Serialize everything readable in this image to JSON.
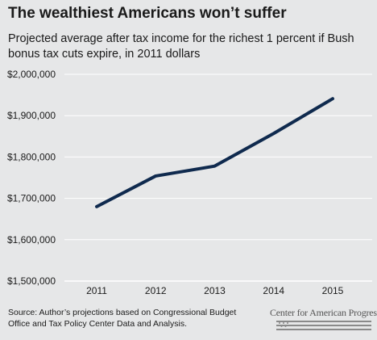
{
  "chart_data": {
    "type": "line",
    "title": "The wealthiest Americans won’t suffer",
    "subtitle": "Projected average after tax income for the richest 1 percent if Bush bonus tax cuts expire, in 2011 dollars",
    "x": [
      "2011",
      "2012",
      "2013",
      "2014",
      "2015"
    ],
    "series": [
      {
        "values": [
          1680000,
          1754000,
          1778000,
          1857000,
          1941000
        ]
      }
    ],
    "ylim": [
      1500000,
      2000000
    ],
    "yticks": [
      1500000,
      1600000,
      1700000,
      1800000,
      1900000,
      2000000
    ],
    "ytick_labels": [
      "$1,500,000",
      "$1,600,000",
      "$1,700,000",
      "$1,800,000",
      "$1,900,000",
      "$2,000,000"
    ],
    "grid": true,
    "line_color": "#0f2a4e",
    "grid_color": "#ffffff"
  },
  "source": "Source: Author’s projections based on Congressional Budget Office and Tax Policy Center Data and Analysis.",
  "logo": {
    "text": "Center for American Progress",
    "color": "#555555"
  }
}
